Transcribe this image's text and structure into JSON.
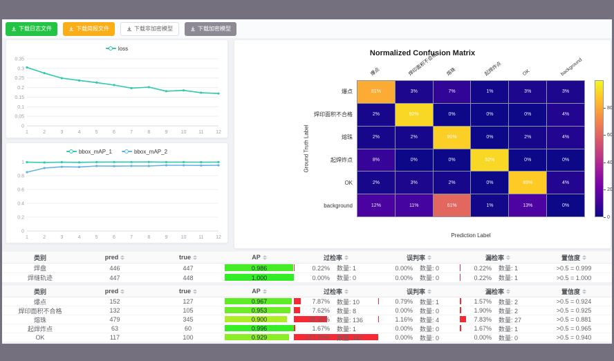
{
  "buttons": [
    {
      "label": "下载日志文件",
      "variant": "green"
    },
    {
      "label": "下载简报文件",
      "variant": "orange"
    },
    {
      "label": "下载非加密模型",
      "variant": "plain"
    },
    {
      "label": "下载加密模型",
      "variant": "gray"
    }
  ],
  "colors": {
    "teal": "#2fc9ab",
    "blue": "#5fb3e6",
    "bar_red": "#f52a35",
    "frame": "#75707d",
    "button_green": "#23c343",
    "button_orange": "#fbae17",
    "button_gray": "#8e8a95"
  },
  "chart_data": [
    {
      "id": "loss",
      "type": "line",
      "title": "",
      "legend": [
        "loss"
      ],
      "legend_position": "top",
      "grid": true,
      "x": [
        1,
        2,
        3,
        4,
        5,
        6,
        7,
        8,
        9,
        10,
        11,
        12
      ],
      "xlabel": "",
      "ylabel": "",
      "ylim": [
        0,
        0.35
      ],
      "yticks": [
        0,
        0.05,
        0.1,
        0.15,
        0.2,
        0.25,
        0.3,
        0.35
      ],
      "series": [
        {
          "name": "loss",
          "color": "#2fc9ab",
          "values": [
            0.305,
            0.275,
            0.249,
            0.237,
            0.226,
            0.213,
            0.197,
            0.202,
            0.181,
            0.185,
            0.173,
            0.169
          ]
        }
      ]
    },
    {
      "id": "bbox_map",
      "type": "line",
      "title": "",
      "legend": [
        "bbox_mAP_1",
        "bbox_mAP_2"
      ],
      "legend_position": "top",
      "grid": true,
      "x": [
        1,
        2,
        3,
        4,
        5,
        6,
        7,
        8,
        9,
        10,
        11,
        12
      ],
      "xlabel": "",
      "ylabel": "",
      "ylim": [
        0,
        1
      ],
      "yticks": [
        0,
        0.2,
        0.4,
        0.6,
        0.8,
        1
      ],
      "series": [
        {
          "name": "bbox_mAP_1",
          "color": "#2fc9ab",
          "values": [
            0.995,
            0.99,
            0.995,
            0.992,
            0.996,
            0.997,
            0.997,
            0.998,
            0.996,
            0.996,
            0.995,
            0.996
          ]
        },
        {
          "name": "bbox_mAP_2",
          "color": "#5fb3e6",
          "values": [
            0.85,
            0.91,
            0.928,
            0.925,
            0.94,
            0.938,
            0.94,
            0.94,
            0.95,
            0.95,
            0.948,
            0.95
          ]
        }
      ]
    },
    {
      "id": "confusion_matrix",
      "type": "heatmap",
      "title": "Normalized Confusion Matrix",
      "xlabel": "Prediction Label",
      "ylabel": "Ground Truth Label",
      "labels": [
        "爆点",
        "焊印面积不合格",
        "熔珠",
        "起焊炸点",
        "OK",
        "background"
      ],
      "matrix_percent": [
        [
          81,
          3,
          7,
          1,
          3,
          3
        ],
        [
          2,
          92,
          0,
          0,
          0,
          4
        ],
        [
          2,
          2,
          90,
          0,
          2,
          4
        ],
        [
          8,
          0,
          0,
          92,
          0,
          0
        ],
        [
          2,
          3,
          2,
          0,
          89,
          4
        ],
        [
          12,
          11,
          61,
          1,
          13,
          0
        ]
      ],
      "vmax": 100,
      "colorbar_ticks": [
        0,
        20,
        40,
        60,
        80
      ],
      "colormap": "plasma"
    }
  ],
  "tables": [
    {
      "headers": [
        {
          "label": "类别",
          "sortable": false
        },
        {
          "label": "pred",
          "sortable": true
        },
        {
          "label": "true",
          "sortable": true
        },
        {
          "label": "AP",
          "sortable": true
        },
        {
          "label": "过检率",
          "sortable": true
        },
        {
          "label": "误判率",
          "sortable": true
        },
        {
          "label": "漏检率",
          "sortable": true
        },
        {
          "label": "置信度",
          "sortable": true
        }
      ],
      "count_label": "数量:",
      "rows": [
        {
          "class": "焊盘",
          "pred": "446",
          "true": "447",
          "ap": 0.986,
          "ap_label": "0.986",
          "over_pct": "0.22%",
          "over_count": "数量: 1",
          "over_val": 0.22,
          "mis_pct": "0.00%",
          "mis_count": "数量: 0",
          "mis_val": 0,
          "miss_pct": "0.22%",
          "miss_count": "数量: 1",
          "miss_val": 0.22,
          "conf": ">0.5 = 0.999"
        },
        {
          "class": "焊缝轨迹",
          "pred": "447",
          "true": "448",
          "ap": 1.0,
          "ap_label": "1.000",
          "over_pct": "0.00%",
          "over_count": "数量: 0",
          "over_val": 0,
          "mis_pct": "0.00%",
          "mis_count": "数量: 0",
          "mis_val": 0,
          "miss_pct": "0.22%",
          "miss_count": "数量: 1",
          "miss_val": 0.22,
          "conf": ">0.5 = 1.000"
        }
      ]
    },
    {
      "headers": [
        {
          "label": "类别",
          "sortable": false
        },
        {
          "label": "pred",
          "sortable": true
        },
        {
          "label": "true",
          "sortable": true
        },
        {
          "label": "AP",
          "sortable": true
        },
        {
          "label": "过检率",
          "sortable": true
        },
        {
          "label": "误判率",
          "sortable": true
        },
        {
          "label": "漏检率",
          "sortable": true
        },
        {
          "label": "置信度",
          "sortable": true
        }
      ],
      "count_label": "数量:",
      "rows": [
        {
          "class": "爆点",
          "pred": "152",
          "true": "127",
          "ap": 0.967,
          "ap_label": "0.967",
          "over_pct": "7.87%",
          "over_count": "数量: 10",
          "over_val": 7.87,
          "mis_pct": "0.79%",
          "mis_count": "数量: 1",
          "mis_val": 0.79,
          "miss_pct": "1.57%",
          "miss_count": "数量: 2",
          "miss_val": 1.57,
          "conf": ">0.5 = 0.924"
        },
        {
          "class": "焊印面积不合格",
          "pred": "132",
          "true": "105",
          "ap": 0.953,
          "ap_label": "0.953",
          "over_pct": "7.62%",
          "over_count": "数量: 8",
          "over_val": 7.62,
          "mis_pct": "0.00%",
          "mis_count": "数量: 0",
          "mis_val": 0,
          "miss_pct": "1.90%",
          "miss_count": "数量: 2",
          "miss_val": 1.9,
          "conf": ">0.5 = 0.925"
        },
        {
          "class": "熔珠",
          "pred": "479",
          "true": "345",
          "ap": 0.9,
          "ap_label": "0.900",
          "over_pct": "39.42%",
          "over_count": "数量: 136",
          "over_val": 39.42,
          "mis_pct": "1.16%",
          "mis_count": "数量: 4",
          "mis_val": 1.16,
          "miss_pct": "7.83%",
          "miss_count": "数量: 27",
          "miss_val": 7.83,
          "conf": ">0.5 = 0.881"
        },
        {
          "class": "起焊炸点",
          "pred": "63",
          "true": "60",
          "ap": 0.996,
          "ap_label": "0.996",
          "over_pct": "1.67%",
          "over_count": "数量: 1",
          "over_val": 1.67,
          "mis_pct": "0.00%",
          "mis_count": "数量: 0",
          "mis_val": 0,
          "miss_pct": "1.67%",
          "miss_count": "数量: 1",
          "miss_val": 1.67,
          "conf": ">0.5 = 0.965"
        },
        {
          "class": "OK",
          "pred": "117",
          "true": "100",
          "ap": 0.929,
          "ap_label": "0.929",
          "over_pct": "117.00%",
          "over_count": "数量: 117",
          "over_val": 117,
          "mis_pct": "0.00%",
          "mis_count": "数量: 0",
          "mis_val": 0,
          "miss_pct": "0.00%",
          "miss_count": "数量: 0",
          "miss_val": 0,
          "conf": ">0.5 = 0.940"
        }
      ]
    }
  ]
}
